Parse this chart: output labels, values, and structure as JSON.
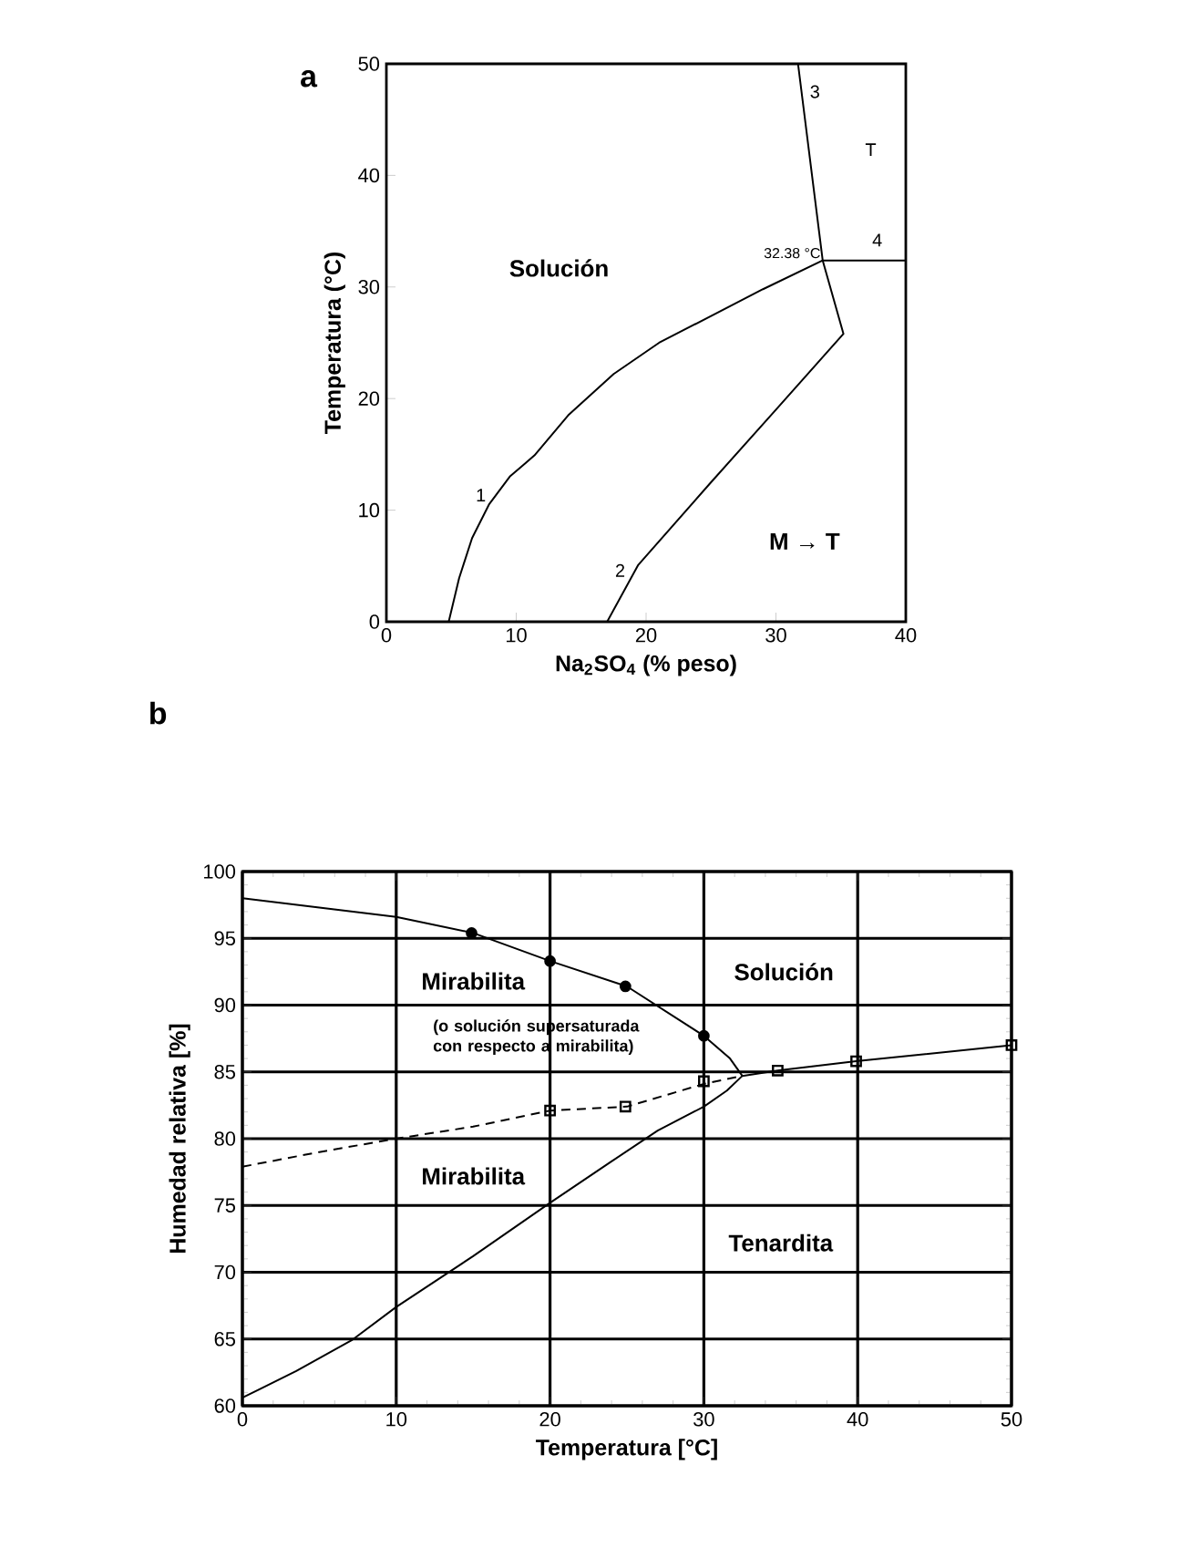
{
  "chart_data": [
    {
      "type": "line",
      "title": "a",
      "xlabel": "Na$_{2}$SO$_{4}$ (% peso)",
      "ylabel": "Temperatura  (°C)",
      "xlim": [
        0,
        40
      ],
      "ylim": [
        0,
        50
      ],
      "xticks": [
        0,
        10,
        20,
        30,
        40
      ],
      "yticks": [
        0,
        10,
        20,
        30,
        40,
        50
      ],
      "series": [
        {
          "color": "#000000",
          "x": [
            4.8,
            5.6,
            6.6,
            7.9,
            9.5,
            11.4,
            14,
            17.5,
            21,
            25,
            29,
            33.6,
            40
          ],
          "values": [
            0,
            3.9,
            7.5,
            10.5,
            13,
            14.9,
            18.5,
            22.2,
            25,
            27.4,
            29.8,
            32.38,
            32.38
          ]
        },
        {
          "color": "#000000",
          "x": [
            17,
            19.4,
            25,
            30,
            35.2,
            33.6,
            31.7
          ],
          "values": [
            0,
            5.1,
            12.5,
            19,
            25.8,
            32.38,
            50
          ]
        }
      ],
      "annotations": [
        {
          "text": "1",
          "x": 7.9,
          "y": 10.5
        },
        "2",
        "3",
        "4",
        {
          "text": "32.38 °C",
          "x": 33.6,
          "y": 32.38
        },
        "Solución",
        "T",
        "M → T"
      ]
    },
    {
      "type": "line",
      "title": "b",
      "xlabel": "Temperatura  [°C]",
      "ylabel": "Humedad relativa  [%]",
      "xlim": [
        0,
        50
      ],
      "ylim": [
        60,
        100
      ],
      "xticks": [
        0,
        10,
        20,
        30,
        40,
        50
      ],
      "yticks": [
        60,
        65,
        70,
        75,
        80,
        85,
        90,
        95,
        100
      ],
      "grid": true,
      "series": [
        {
          "color": "#000000",
          "x": [
            0,
            5,
            10,
            15,
            20,
            25,
            30,
            31.7,
            32.5,
            31.5,
            30,
            27,
            24,
            20,
            15,
            10,
            7.1,
            3.5,
            0
          ],
          "values": [
            98,
            97.3,
            96.6,
            95.4,
            93.3,
            91.4,
            87.7,
            86,
            84.7,
            83.6,
            82.4,
            80.6,
            78.3,
            75.2,
            71.2,
            67.4,
            64.9,
            62.6,
            60.6
          ]
        },
        {
          "color": "#000000",
          "line_style": "dashed",
          "x": [
            0,
            5,
            10,
            15,
            20,
            25,
            30,
            32.5
          ],
          "values": [
            77.9,
            79,
            80,
            80.9,
            82.1,
            82.4,
            84.1,
            84.7
          ]
        },
        {
          "color": "#000000",
          "x": [
            32.5,
            34.8,
            39.9,
            50
          ],
          "values": [
            84.7,
            85.1,
            85.8,
            87
          ]
        },
        {
          "type": "scatter",
          "marker": "circle",
          "color": "#000000",
          "x": [
            14.9,
            20,
            24.9,
            30
          ],
          "values": [
            95.4,
            93.3,
            91.4,
            87.7
          ]
        },
        {
          "type": "scatter",
          "marker": "square",
          "color": "#000000",
          "x": [
            20,
            24.9,
            30,
            34.8,
            39.9,
            50
          ],
          "values": [
            82.1,
            82.4,
            84.3,
            85.1,
            85.8,
            87
          ]
        }
      ],
      "annotations": [
        "Mirabilita",
        "(o solución supersaturada con respecto a mirabilita)",
        "Solución",
        "Mirabilita",
        "Tenardita"
      ]
    }
  ]
}
